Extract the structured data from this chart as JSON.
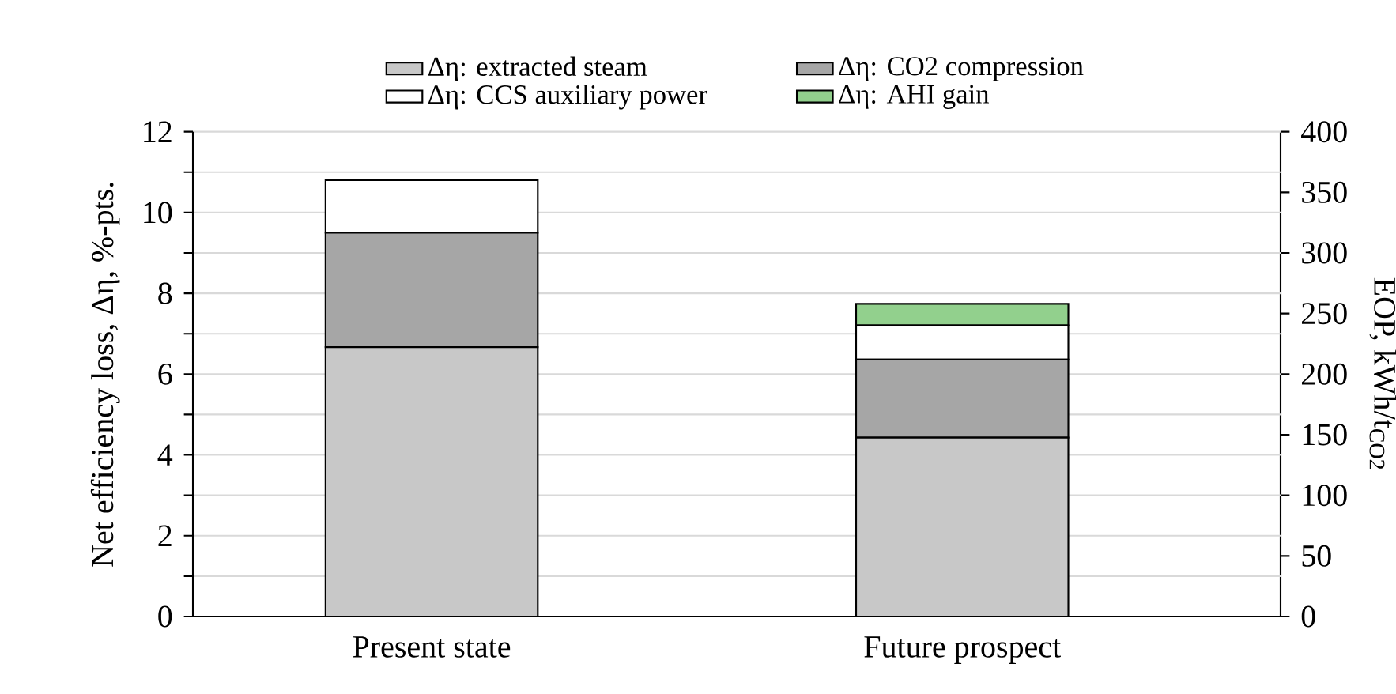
{
  "chart_data": {
    "type": "bar",
    "stacked": true,
    "categories": [
      "Present state",
      "Future prospect"
    ],
    "series": [
      {
        "name": "Δη: extracted steam",
        "color": "#c8c8c8",
        "values": [
          6.67,
          4.43
        ]
      },
      {
        "name": "Δη: CO2 compression",
        "color": "#a6a6a6",
        "values": [
          2.83,
          1.93
        ]
      },
      {
        "name": "Δη: CCS auxiliary power",
        "color": "#ffffff",
        "values": [
          1.3,
          0.85
        ]
      },
      {
        "name": "Δη: AHI gain",
        "color": "#92d08d",
        "values": [
          null,
          0.53
        ]
      }
    ],
    "ylabel": "Net efficiency loss, Δη, %-pts.",
    "y2label": "EOP, kWh/t$_{CO2}$",
    "ylim": [
      0,
      12
    ],
    "yticks": [
      0,
      {
        "value": 1,
        "label": null
      },
      2,
      {
        "value": 3,
        "label": null
      },
      4,
      {
        "value": 5,
        "label": null
      },
      6,
      {
        "value": 7,
        "label": null
      },
      8,
      {
        "value": 9,
        "label": null
      },
      10,
      {
        "value": 11,
        "label": null
      },
      12
    ],
    "y2lim": [
      0,
      400
    ],
    "y2ticks": [
      0,
      50,
      100,
      150,
      200,
      250,
      300,
      350,
      400
    ],
    "grid": "y",
    "legend": "top"
  }
}
